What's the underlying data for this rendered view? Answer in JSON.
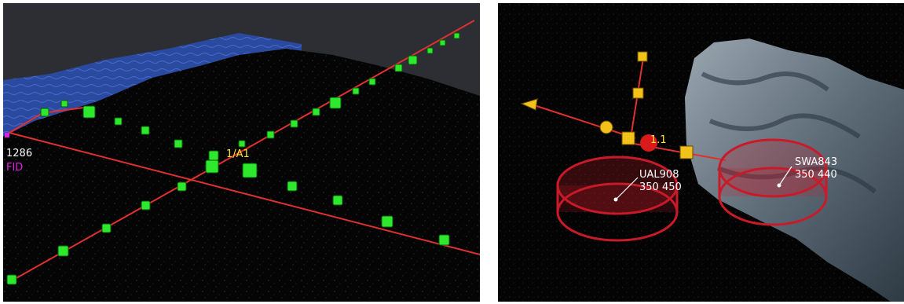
{
  "left_view": {
    "flight_id_partial": "1286",
    "altitude_partial": "FID",
    "intersection_label": "1/A1"
  },
  "right_view": {
    "conflict_label": "1.1",
    "aircraft": [
      {
        "callsign": "UAL908",
        "alt_readout": "350 450"
      },
      {
        "callsign": "SWA843",
        "alt_readout": "350 440"
      }
    ]
  },
  "colors": {
    "route_line": "#e03030",
    "waypoint": "#2ee82e",
    "water": "#2a4aa0",
    "sky": "#2c2e33",
    "ground": "#050505",
    "label_yellow": "#ffe23a",
    "label_magenta": "#e020e0",
    "protection_zone": "#c81a28",
    "weather_cell": "#7a8a96",
    "aircraft_marker": "#f2c21a"
  }
}
